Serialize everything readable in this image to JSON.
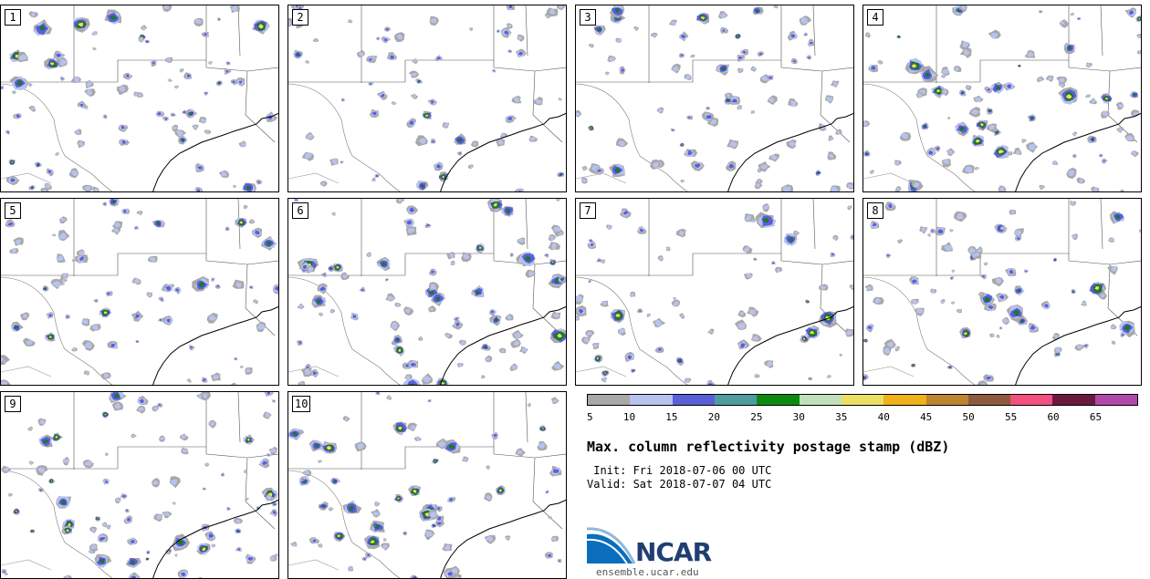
{
  "panels": [
    {
      "label": "1"
    },
    {
      "label": "2"
    },
    {
      "label": "3"
    },
    {
      "label": "4"
    },
    {
      "label": "5"
    },
    {
      "label": "6"
    },
    {
      "label": "7"
    },
    {
      "label": "8"
    },
    {
      "label": "9"
    },
    {
      "label": "10"
    }
  ],
  "colorbar": {
    "colors": [
      "#a8a8a8",
      "#b8c2ee",
      "#5a5fd8",
      "#4e9ca0",
      "#0c8a10",
      "#bfe0bb",
      "#ece062",
      "#efb218",
      "#be8430",
      "#8e5a3e",
      "#f2507e",
      "#6a1a3e",
      "#b04aaa"
    ],
    "ticks": [
      "5",
      "10",
      "15",
      "20",
      "25",
      "30",
      "35",
      "40",
      "45",
      "50",
      "55",
      "60",
      "65"
    ]
  },
  "title": "Max. column reflectivity postage stamp (dBZ)",
  "init": " Init: Fri 2018-07-06 00 UTC",
  "valid": "Valid: Sat 2018-07-07 04 UTC",
  "logo": {
    "name": "NCAR",
    "url": "ensemble.ucar.edu"
  }
}
